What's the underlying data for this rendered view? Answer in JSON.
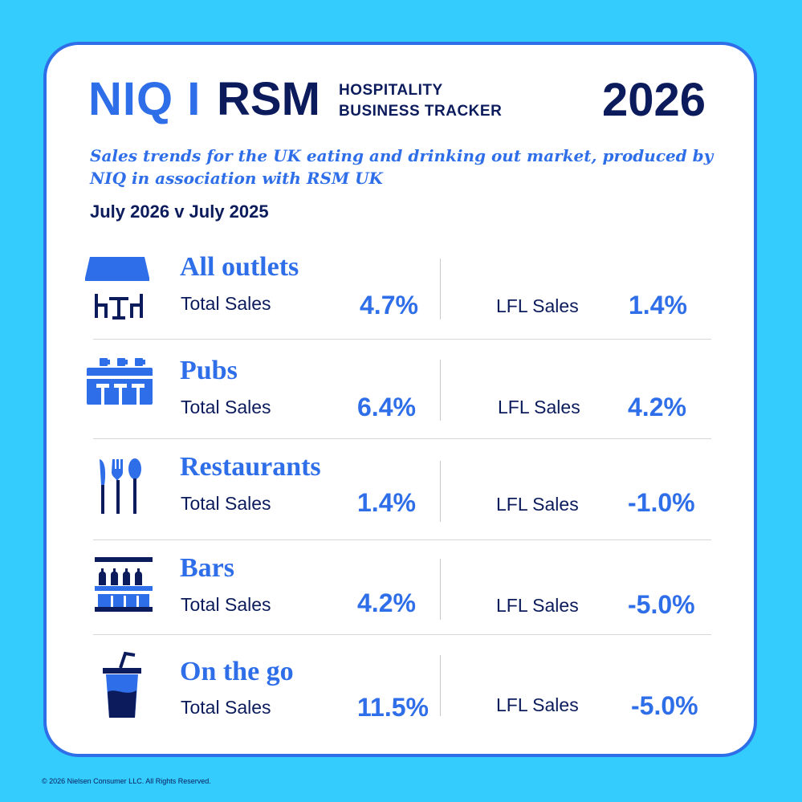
{
  "header": {
    "logo_niq": "NIQ I",
    "logo_rsm": "RSM",
    "tracker_line1": "HOSPITALITY",
    "tracker_line2": "BUSINESS TRACKER",
    "year": "2026"
  },
  "subtitle": "Sales trends for the UK eating and drinking out market, produced by NIQ in association with RSM UK",
  "period": "July 2026 v July 2025",
  "rows": [
    {
      "category": "All outlets",
      "total_label": "Total Sales",
      "total_value": "4.7%",
      "lfl_label": "LFL Sales",
      "lfl_value": "1.4%",
      "icon": "outlet-awning-table-icon"
    },
    {
      "category": "Pubs",
      "total_label": "Total Sales",
      "total_value": "6.4%",
      "lfl_label": "LFL Sales",
      "lfl_value": "4.2%",
      "icon": "pub-bar-counter-icon"
    },
    {
      "category": "Restaurants",
      "total_label": "Total Sales",
      "total_value": "1.4%",
      "lfl_label": "LFL Sales",
      "lfl_value": "-1.0%",
      "icon": "cutlery-icon"
    },
    {
      "category": "Bars",
      "total_label": "Total Sales",
      "total_value": "4.2%",
      "lfl_label": "LFL Sales",
      "lfl_value": "-5.0%",
      "icon": "bottle-shelf-icon"
    },
    {
      "category": "On the go",
      "total_label": "Total Sales",
      "total_value": "11.5%",
      "lfl_label": "LFL Sales",
      "lfl_value": "-5.0%",
      "icon": "takeaway-cup-icon"
    }
  ],
  "footer": "© 2026 Nielsen Consumer LLC. All Rights Reserved.",
  "colors": {
    "background": "#33ccfd",
    "accent": "#2f6ee9",
    "navy": "#0b1b5c"
  }
}
